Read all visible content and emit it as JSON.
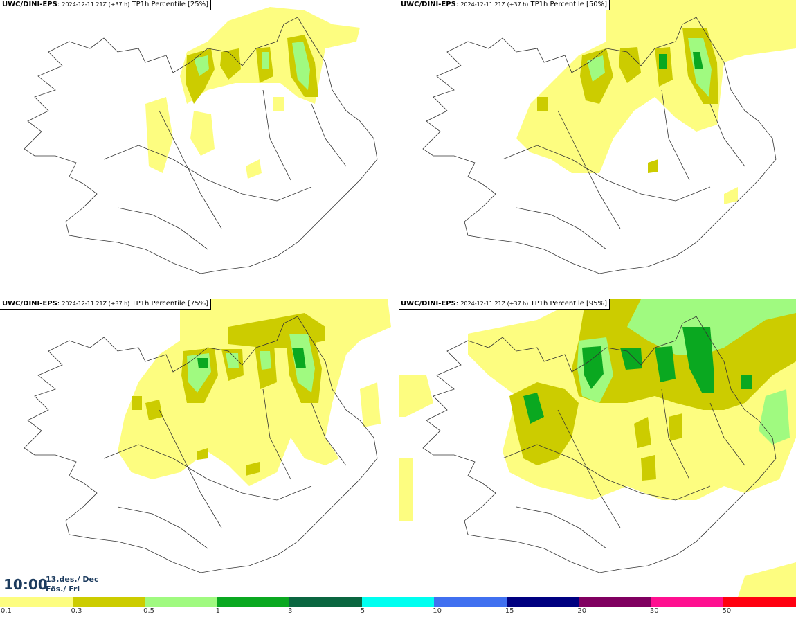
{
  "panels": [
    {
      "model": "UWC/DINI-EPS",
      "run": "2024-12-11 21Z (+37 h)",
      "field": "TP1h Percentile [25%]"
    },
    {
      "model": "UWC/DINI-EPS",
      "run": "2024-12-11 21Z (+37 h)",
      "field": "TP1h Percentile [50%]"
    },
    {
      "model": "UWC/DINI-EPS",
      "run": "2024-12-11 21Z (+37 h)",
      "field": "TP1h Percentile [75%]"
    },
    {
      "model": "UWC/DINI-EPS",
      "run": "2024-12-11 21Z (+37 h)",
      "field": "TP1h Percentile [95%]"
    }
  ],
  "valid_time": {
    "time": "10:00",
    "date_line": "13.des./ Dec",
    "day_line": "Fös./ Fri"
  },
  "legend": {
    "labels": [
      "0.1",
      "0.3",
      "0.5",
      "1",
      "3",
      "5",
      "10",
      "15",
      "20",
      "30",
      "50"
    ],
    "colors": [
      "#fdfd80",
      "#cccc00",
      "#a0fa80",
      "#0aa820",
      "#0a6640",
      "#00fff0",
      "#4070f0",
      "#000080",
      "#800060",
      "#ff1090",
      "#ff0010"
    ]
  }
}
